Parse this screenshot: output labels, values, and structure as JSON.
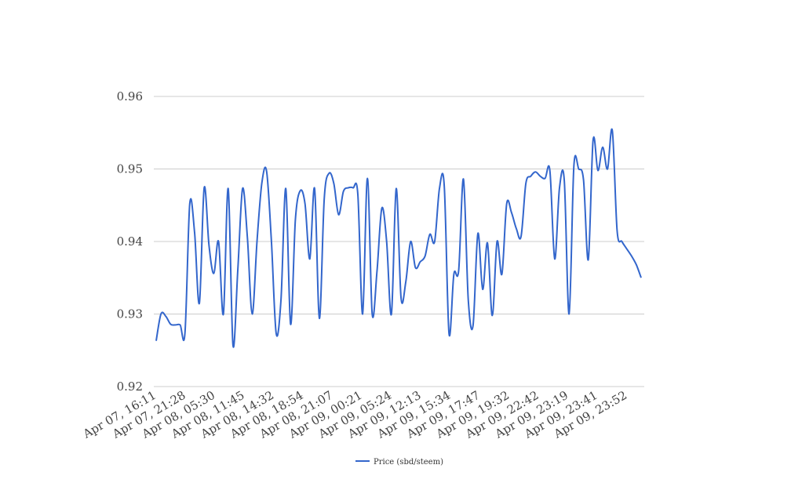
{
  "chart_data": {
    "type": "line",
    "title": "",
    "xlabel": "",
    "ylabel": "",
    "ylim": [
      0.92,
      0.96
    ],
    "yticks": [
      0.92,
      0.93,
      0.94,
      0.95,
      0.96
    ],
    "ytick_labels": [
      "0.92",
      "0.93",
      "0.94",
      "0.95",
      "0.96"
    ],
    "grid": true,
    "legend": "bottom-center",
    "xtick_labels": [
      "Apr 07, 16:11",
      "Apr 07, 21:28",
      "Apr 08, 05:30",
      "Apr 08, 11:45",
      "Apr 08, 14:32",
      "Apr 08, 18:54",
      "Apr 08, 21:07",
      "Apr 09, 00:21",
      "Apr 09, 05:24",
      "Apr 09, 12:13",
      "Apr 09, 15:34",
      "Apr 09, 17:47",
      "Apr 09, 19:32",
      "Apr 09, 22:42",
      "Apr 09, 23:19",
      "Apr 09, 23:41",
      "Apr 09, 23:52"
    ],
    "series": [
      {
        "name": "Price (sbd/steem)",
        "color": "#3366cc",
        "values": [
          0.9263,
          0.93,
          0.9297,
          0.9286,
          0.9285,
          0.9285,
          0.9274,
          0.9452,
          0.9412,
          0.9315,
          0.9474,
          0.9395,
          0.9356,
          0.94,
          0.93,
          0.9473,
          0.9257,
          0.936,
          0.9473,
          0.9405,
          0.93,
          0.94,
          0.948,
          0.9497,
          0.94,
          0.9273,
          0.932,
          0.9473,
          0.9286,
          0.943,
          0.947,
          0.9452,
          0.9376,
          0.9473,
          0.9294,
          0.9459,
          0.9494,
          0.948,
          0.9437,
          0.9469,
          0.9474,
          0.9474,
          0.9465,
          0.93,
          0.9487,
          0.93,
          0.936,
          0.9446,
          0.94,
          0.93,
          0.9473,
          0.9322,
          0.9345,
          0.94,
          0.9364,
          0.9372,
          0.938,
          0.941,
          0.94,
          0.9473,
          0.9477,
          0.9273,
          0.9355,
          0.936,
          0.9486,
          0.932,
          0.9284,
          0.9411,
          0.9334,
          0.9398,
          0.9298,
          0.94,
          0.9355,
          0.9452,
          0.944,
          0.9418,
          0.9407,
          0.948,
          0.949,
          0.9496,
          0.949,
          0.9487,
          0.9498,
          0.9376,
          0.9474,
          0.9484,
          0.93,
          0.9504,
          0.95,
          0.9485,
          0.9375,
          0.954,
          0.9498,
          0.953,
          0.95,
          0.9553,
          0.9415,
          0.94,
          0.939,
          0.938,
          0.9368,
          0.935
        ]
      }
    ]
  }
}
